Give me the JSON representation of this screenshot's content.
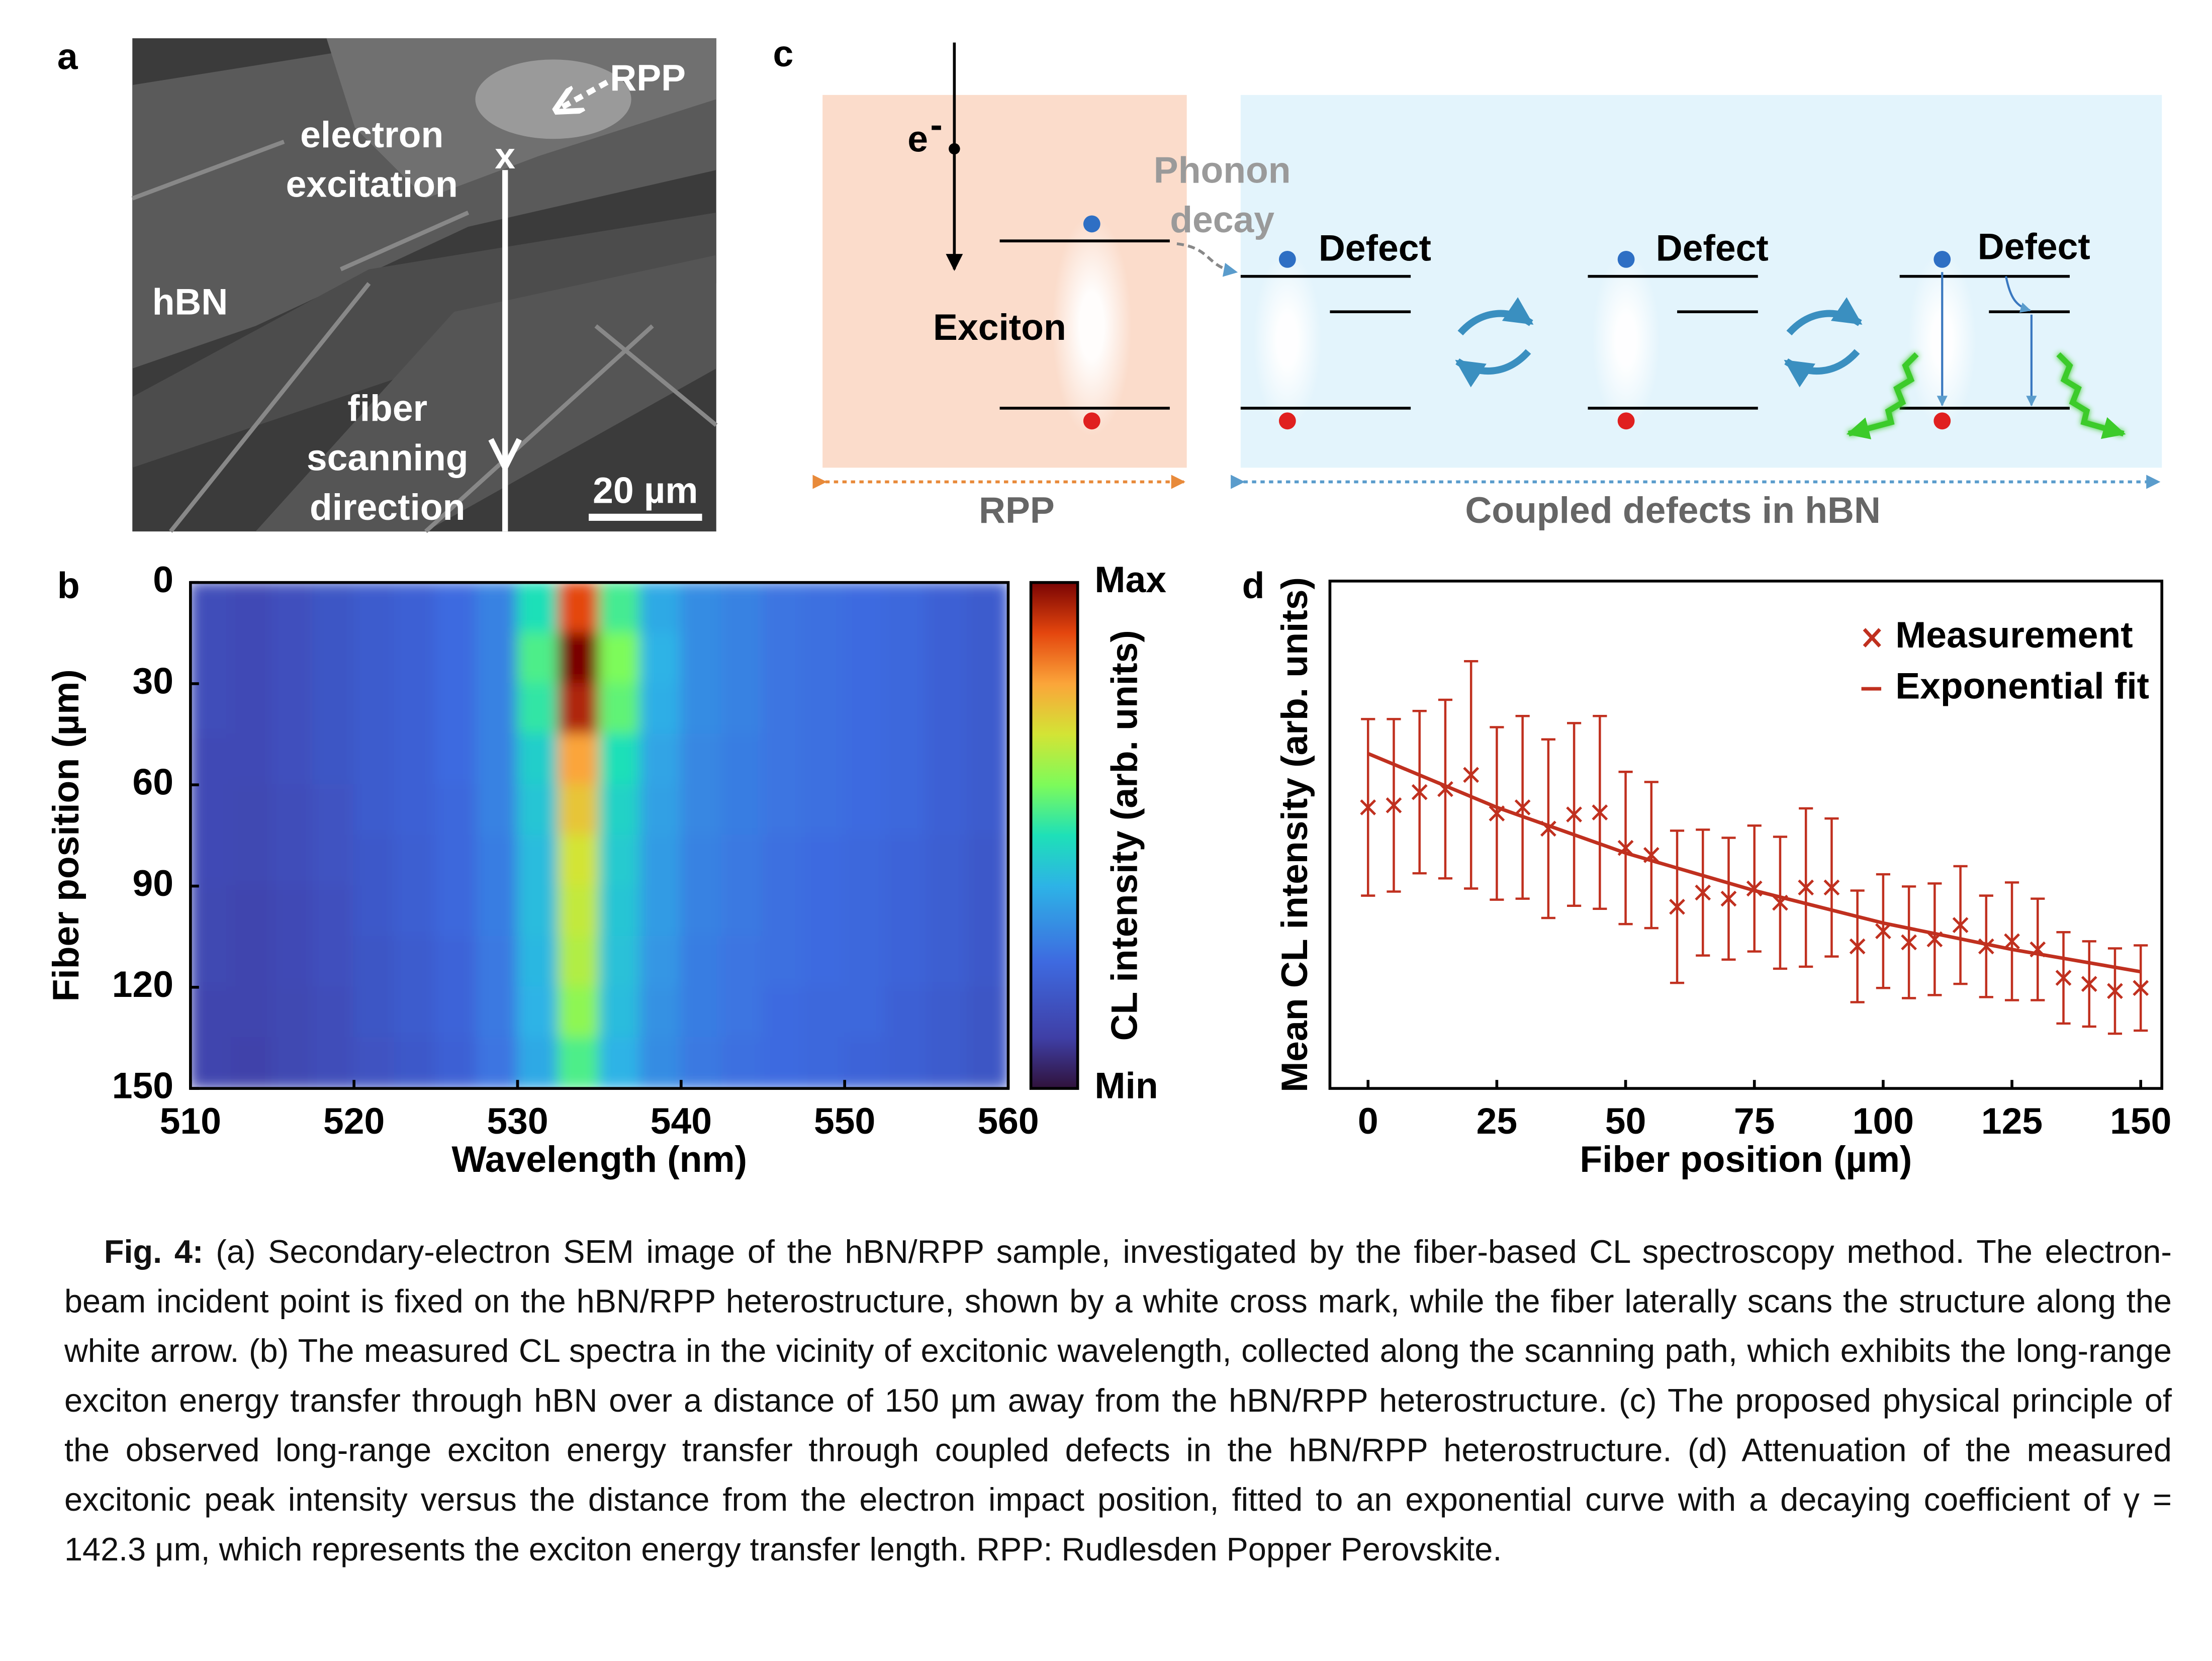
{
  "panel_a": {
    "label": "a",
    "rpp": "RPP",
    "excitation": [
      "electron",
      "excitation"
    ],
    "marker": "x",
    "hbn": "hBN",
    "scan": [
      "fiber",
      "scanning",
      "direction"
    ],
    "scale_bar": "20 µm"
  },
  "panel_c": {
    "label": "c",
    "electron": "e",
    "electron_charge": "-",
    "phonon": [
      "Phonon",
      "decay"
    ],
    "exciton": "Exciton",
    "defects": [
      "Defect",
      "Defect",
      "Defect"
    ],
    "rpp": "RPP",
    "coupled": "Coupled defects in hBN"
  },
  "chart_data": [
    {
      "type": "heatmap",
      "panel_label": "b",
      "x_label": "Wavelength (nm)",
      "y_label": "Fiber position (µm)",
      "colorbar_label": "CL intensity (arb. units)",
      "xlim": [
        510,
        560
      ],
      "ylim": [
        150,
        0
      ],
      "xticks": [
        510,
        520,
        530,
        540,
        550,
        560
      ],
      "yticks": [
        0,
        30,
        60,
        90,
        120,
        150
      ],
      "xbins": [
        510,
        512.5,
        515,
        517.5,
        520,
        522.5,
        525,
        527.5,
        530,
        532.5,
        535,
        537.5,
        540,
        542.5,
        545,
        547.5,
        550,
        552.5,
        555,
        557.5,
        560
      ],
      "ybins": [
        0,
        15,
        30,
        45,
        60,
        75,
        90,
        105,
        120,
        135,
        150
      ],
      "clim": [
        0,
        1
      ],
      "cticks": [
        {
          "value": 1,
          "label": "Max"
        },
        {
          "value": 0,
          "label": "Min"
        }
      ],
      "colormap": [
        [
          0,
          "#30123b"
        ],
        [
          0.1,
          "#3f3fa6"
        ],
        [
          0.25,
          "#3e6ae0"
        ],
        [
          0.4,
          "#2db3e6"
        ],
        [
          0.5,
          "#1ee0b8"
        ],
        [
          0.6,
          "#7dfb5a"
        ],
        [
          0.7,
          "#d3e435"
        ],
        [
          0.8,
          "#fba53a"
        ],
        [
          0.9,
          "#e4460e"
        ],
        [
          1,
          "#7a0403"
        ]
      ],
      "z": [
        [
          0.15,
          0.14,
          0.16,
          0.18,
          0.2,
          0.22,
          0.25,
          0.3,
          0.5,
          0.9,
          0.54,
          0.38,
          0.32,
          0.3,
          0.27,
          0.26,
          0.25,
          0.24,
          0.22,
          0.2
        ],
        [
          0.15,
          0.14,
          0.16,
          0.18,
          0.2,
          0.22,
          0.25,
          0.3,
          0.55,
          1.0,
          0.6,
          0.4,
          0.32,
          0.3,
          0.27,
          0.26,
          0.25,
          0.24,
          0.22,
          0.2
        ],
        [
          0.15,
          0.14,
          0.16,
          0.18,
          0.2,
          0.22,
          0.25,
          0.3,
          0.52,
          0.95,
          0.57,
          0.39,
          0.32,
          0.3,
          0.27,
          0.26,
          0.25,
          0.24,
          0.22,
          0.2
        ],
        [
          0.14,
          0.14,
          0.16,
          0.18,
          0.2,
          0.22,
          0.25,
          0.3,
          0.46,
          0.8,
          0.5,
          0.37,
          0.31,
          0.29,
          0.27,
          0.26,
          0.25,
          0.24,
          0.22,
          0.2
        ],
        [
          0.14,
          0.13,
          0.15,
          0.17,
          0.2,
          0.22,
          0.24,
          0.3,
          0.44,
          0.75,
          0.47,
          0.36,
          0.31,
          0.29,
          0.27,
          0.26,
          0.25,
          0.24,
          0.22,
          0.2
        ],
        [
          0.14,
          0.13,
          0.15,
          0.17,
          0.19,
          0.21,
          0.24,
          0.29,
          0.42,
          0.7,
          0.45,
          0.35,
          0.3,
          0.28,
          0.26,
          0.25,
          0.24,
          0.23,
          0.21,
          0.19
        ],
        [
          0.13,
          0.12,
          0.14,
          0.16,
          0.19,
          0.21,
          0.24,
          0.29,
          0.42,
          0.68,
          0.44,
          0.35,
          0.3,
          0.28,
          0.26,
          0.25,
          0.24,
          0.23,
          0.21,
          0.19
        ],
        [
          0.13,
          0.12,
          0.14,
          0.16,
          0.18,
          0.2,
          0.23,
          0.28,
          0.41,
          0.66,
          0.43,
          0.34,
          0.29,
          0.27,
          0.26,
          0.25,
          0.24,
          0.23,
          0.21,
          0.19
        ],
        [
          0.12,
          0.12,
          0.13,
          0.15,
          0.18,
          0.2,
          0.23,
          0.28,
          0.4,
          0.62,
          0.42,
          0.33,
          0.29,
          0.27,
          0.25,
          0.24,
          0.24,
          0.22,
          0.2,
          0.18
        ],
        [
          0.12,
          0.11,
          0.13,
          0.15,
          0.17,
          0.19,
          0.22,
          0.27,
          0.38,
          0.55,
          0.4,
          0.32,
          0.28,
          0.26,
          0.25,
          0.24,
          0.23,
          0.22,
          0.2,
          0.18
        ]
      ]
    },
    {
      "type": "scatter",
      "panel_label": "d",
      "x_label": "Fiber position (µm)",
      "y_label": "Mean CL intensity (arb. units)",
      "xlim": [
        -7.4,
        154.1
      ],
      "ylim": [
        0,
        5
      ],
      "xticks": [
        0,
        25,
        50,
        75,
        100,
        125,
        150
      ],
      "legend": "upper right",
      "series": [
        {
          "name": "Measurement",
          "color": "#c0301f",
          "mode": "markers",
          "marker": "x",
          "x": [
            0,
            5,
            10,
            15,
            20,
            25,
            30,
            35,
            40,
            45,
            50,
            55,
            60,
            65,
            70,
            75,
            80,
            85,
            90,
            95,
            100,
            105,
            110,
            115,
            120,
            125,
            130,
            135,
            140,
            145,
            150
          ],
          "values": [
            2.77,
            2.79,
            2.92,
            2.95,
            3.09,
            2.71,
            2.77,
            2.56,
            2.7,
            2.72,
            2.37,
            2.3,
            1.79,
            1.93,
            1.87,
            1.97,
            1.83,
            1.98,
            1.98,
            1.4,
            1.55,
            1.44,
            1.47,
            1.61,
            1.4,
            1.45,
            1.37,
            1.09,
            1.03,
            0.96,
            0.99
          ],
          "errors": [
            0.87,
            0.85,
            0.8,
            0.88,
            1.12,
            0.85,
            0.9,
            0.88,
            0.9,
            0.95,
            0.75,
            0.72,
            0.75,
            0.62,
            0.6,
            0.62,
            0.65,
            0.78,
            0.68,
            0.55,
            0.56,
            0.55,
            0.55,
            0.58,
            0.5,
            0.58,
            0.5,
            0.45,
            0.42,
            0.42,
            0.42
          ]
        },
        {
          "name": "Exponential fit",
          "color": "#c0301f",
          "mode": "line",
          "x": [
            0,
            25,
            50,
            75,
            100,
            125,
            150
          ],
          "values": [
            3.3,
            2.77,
            2.32,
            1.95,
            1.63,
            1.37,
            1.15
          ]
        }
      ]
    }
  ],
  "caption": {
    "label": "Fig. 4:",
    "text": "(a) Secondary-electron SEM image of the hBN/RPP sample, investigated by the fiber-based CL spectroscopy method. The electron-beam incident point is fixed on the hBN/RPP heterostructure, shown by a white cross mark, while the fiber laterally scans the structure along the white arrow. (b) The measured CL spectra in the vicinity of excitonic wavelength, collected along the scanning path, which exhibits the long-range exciton energy transfer through hBN over a distance of 150 µm away from the hBN/RPP heterostructure. (c) The proposed physical principle of the observed long-range exciton energy transfer through coupled defects in the hBN/RPP heterostructure.  (d) Attenuation of the measured excitonic peak intensity versus the distance from the electron impact position, fitted to an exponential curve with a decaying coefficient of γ = 142.3 μm, which represents the exciton energy transfer length. RPP: Rudlesden Popper Perovskite."
  }
}
